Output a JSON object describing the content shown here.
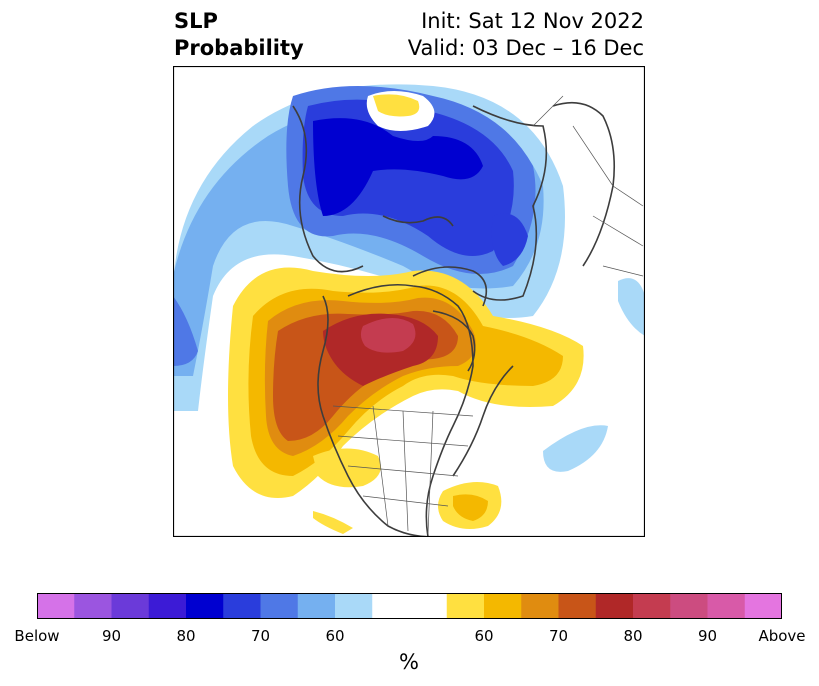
{
  "header": {
    "title_line1": "SLP",
    "title_line2": "Probability",
    "init_text": "Init: Sat 12 Nov 2022",
    "valid_text": "Valid: 03 Dec – 16 Dec"
  },
  "colorbar": {
    "units": "%",
    "colors": [
      "#d572e8",
      "#9b55e0",
      "#6b3ad9",
      "#3c1bd6",
      "#0000d0",
      "#2a3ddc",
      "#4f78e6",
      "#75b0f0",
      "#a9d9f8",
      "#ffffff",
      "#ffffff",
      "#ffe040",
      "#f4b800",
      "#e08c10",
      "#c85518",
      "#b02828",
      "#c43c50",
      "#cc4c80",
      "#d85aa8",
      "#e475e0"
    ],
    "tick_labels": [
      "Below",
      "90",
      "80",
      "70",
      "60",
      "60",
      "70",
      "80",
      "90",
      "Above"
    ]
  }
}
